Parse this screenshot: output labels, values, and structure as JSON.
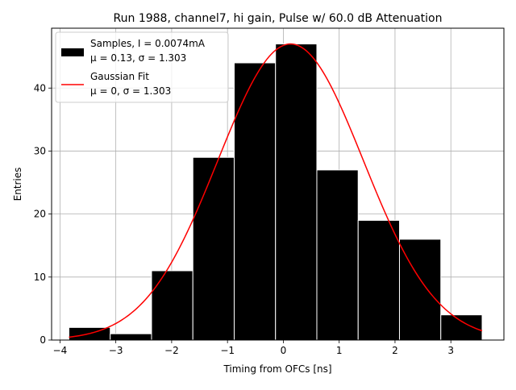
{
  "chart_data": {
    "type": "bar",
    "title": "Run 1988, channel7, hi gain, Pulse w/ 60.0 dB Attenuation",
    "xlabel": "Timing from OFCs [ns]",
    "ylabel": "Entries",
    "xlim": [
      -4.15,
      3.95
    ],
    "ylim": [
      0,
      49.5
    ],
    "grid": true,
    "legend_position": "top-left",
    "x_ticks": [
      -4,
      -3,
      -2,
      -1,
      0,
      1,
      2,
      3
    ],
    "x_tick_labels": [
      "−4",
      "−3",
      "−2",
      "−1",
      "0",
      "1",
      "2",
      "3"
    ],
    "y_ticks": [
      0,
      10,
      20,
      30,
      40
    ],
    "y_tick_labels": [
      "0",
      "10",
      "20",
      "30",
      "40"
    ],
    "histogram": {
      "bin_edges": [
        -3.84,
        -3.1,
        -2.36,
        -1.62,
        -0.88,
        -0.14,
        0.6,
        1.34,
        2.08,
        2.82,
        3.56
      ],
      "counts": [
        2,
        1,
        11,
        29,
        44,
        47,
        27,
        19,
        16,
        4
      ],
      "color": "#000000"
    },
    "fit": {
      "type": "gaussian",
      "mu": 0.13,
      "sigma": 1.303,
      "peak": 47,
      "x_range": [
        -3.84,
        3.56
      ],
      "color": "#ff0000"
    },
    "legend": [
      {
        "label_line1": "Samples, I = 0.0074mA",
        "label_line2": "μ = 0.13, σ = 1.303",
        "kind": "patch",
        "color": "#000000"
      },
      {
        "label_line1": "Gaussian Fit",
        "label_line2": "μ = 0, σ = 1.303",
        "kind": "line",
        "color": "#ff0000"
      }
    ]
  }
}
